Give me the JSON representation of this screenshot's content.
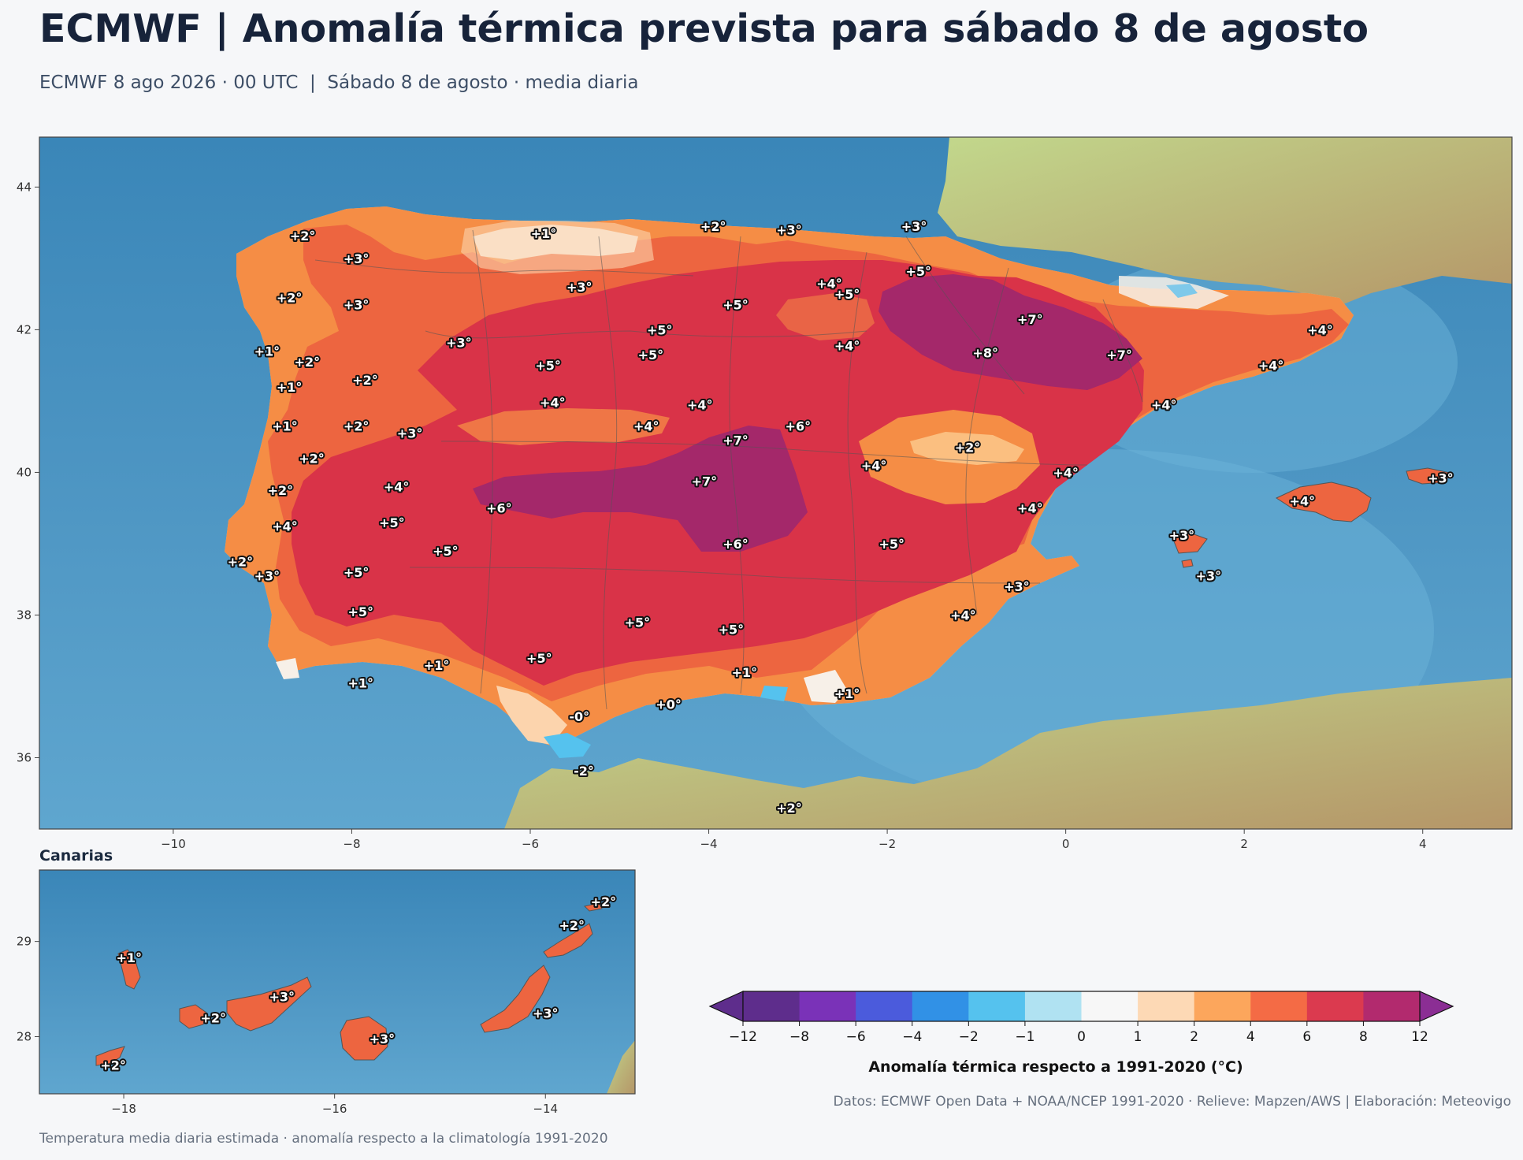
{
  "header": {
    "title": "ECMWF | Anomalía térmica prevista para sábado 8 de agosto",
    "subtitle": "ECMWF 8 ago 2026 · 00 UTC  |  Sábado 8 de agosto · media diaria"
  },
  "main_map": {
    "lon_ticks": [
      "−10",
      "−8",
      "−6",
      "−4",
      "−2",
      "0",
      "2",
      "4"
    ],
    "lat_ticks": [
      "44",
      "42",
      "40",
      "38",
      "36"
    ],
    "labels": [
      {
        "lon": -8.55,
        "lat": 43.32,
        "text": "+2°"
      },
      {
        "lon": -7.95,
        "lat": 43.0,
        "text": "+3°"
      },
      {
        "lon": -8.7,
        "lat": 42.45,
        "text": "+2°"
      },
      {
        "lon": -7.95,
        "lat": 42.35,
        "text": "+3°"
      },
      {
        "lon": -8.95,
        "lat": 41.7,
        "text": "+1°"
      },
      {
        "lon": -8.5,
        "lat": 41.55,
        "text": "+2°"
      },
      {
        "lon": -8.7,
        "lat": 41.2,
        "text": "+1°"
      },
      {
        "lon": -7.85,
        "lat": 41.3,
        "text": "+2°"
      },
      {
        "lon": -8.75,
        "lat": 40.65,
        "text": "+1°"
      },
      {
        "lon": -7.95,
        "lat": 40.65,
        "text": "+2°"
      },
      {
        "lon": -7.35,
        "lat": 40.55,
        "text": "+3°"
      },
      {
        "lon": -8.45,
        "lat": 40.2,
        "text": "+2°"
      },
      {
        "lon": -8.8,
        "lat": 39.75,
        "text": "+2°"
      },
      {
        "lon": -7.5,
        "lat": 39.8,
        "text": "+4°"
      },
      {
        "lon": -7.55,
        "lat": 39.3,
        "text": "+5°"
      },
      {
        "lon": -8.75,
        "lat": 39.25,
        "text": "+4°"
      },
      {
        "lon": -9.25,
        "lat": 38.75,
        "text": "+2°"
      },
      {
        "lon": -8.95,
        "lat": 38.55,
        "text": "+3°"
      },
      {
        "lon": -7.95,
        "lat": 38.6,
        "text": "+5°"
      },
      {
        "lon": -7.9,
        "lat": 38.05,
        "text": "+5°"
      },
      {
        "lon": -7.9,
        "lat": 37.05,
        "text": "+1°"
      },
      {
        "lon": -7.05,
        "lat": 37.3,
        "text": "+1°"
      },
      {
        "lon": -6.95,
        "lat": 38.9,
        "text": "+5°"
      },
      {
        "lon": -6.35,
        "lat": 39.5,
        "text": "+6°"
      },
      {
        "lon": -5.45,
        "lat": 36.58,
        "text": "-0°"
      },
      {
        "lon": -5.9,
        "lat": 37.4,
        "text": "+5°"
      },
      {
        "lon": -5.4,
        "lat": 35.82,
        "text": "-2°"
      },
      {
        "lon": -5.85,
        "lat": 43.35,
        "text": "+1°"
      },
      {
        "lon": -5.45,
        "lat": 42.6,
        "text": "+3°"
      },
      {
        "lon": -6.8,
        "lat": 41.82,
        "text": "+3°"
      },
      {
        "lon": -5.8,
        "lat": 41.5,
        "text": "+5°"
      },
      {
        "lon": -5.75,
        "lat": 40.98,
        "text": "+4°"
      },
      {
        "lon": -4.65,
        "lat": 41.65,
        "text": "+5°"
      },
      {
        "lon": -4.55,
        "lat": 42.0,
        "text": "+5°"
      },
      {
        "lon": -4.7,
        "lat": 40.65,
        "text": "+4°"
      },
      {
        "lon": -4.1,
        "lat": 40.95,
        "text": "+4°"
      },
      {
        "lon": -3.95,
        "lat": 43.45,
        "text": "+2°"
      },
      {
        "lon": -3.1,
        "lat": 43.4,
        "text": "+3°"
      },
      {
        "lon": -3.7,
        "lat": 42.35,
        "text": "+5°"
      },
      {
        "lon": -2.65,
        "lat": 42.65,
        "text": "+4°"
      },
      {
        "lon": -2.45,
        "lat": 42.5,
        "text": "+5°"
      },
      {
        "lon": -2.45,
        "lat": 41.78,
        "text": "+4°"
      },
      {
        "lon": -1.7,
        "lat": 43.45,
        "text": "+3°"
      },
      {
        "lon": -1.65,
        "lat": 42.82,
        "text": "+5°"
      },
      {
        "lon": -3.0,
        "lat": 40.65,
        "text": "+6°"
      },
      {
        "lon": -3.7,
        "lat": 40.45,
        "text": "+7°"
      },
      {
        "lon": -4.05,
        "lat": 39.88,
        "text": "+7°"
      },
      {
        "lon": -3.7,
        "lat": 39.0,
        "text": "+6°"
      },
      {
        "lon": -4.8,
        "lat": 37.9,
        "text": "+5°"
      },
      {
        "lon": -3.75,
        "lat": 37.8,
        "text": "+5°"
      },
      {
        "lon": -3.6,
        "lat": 37.2,
        "text": "+1°"
      },
      {
        "lon": -4.45,
        "lat": 36.75,
        "text": "+0°"
      },
      {
        "lon": -2.45,
        "lat": 36.9,
        "text": "+1°"
      },
      {
        "lon": -3.1,
        "lat": 35.3,
        "text": "+2°"
      },
      {
        "lon": -2.15,
        "lat": 40.1,
        "text": "+4°"
      },
      {
        "lon": -1.95,
        "lat": 39.0,
        "text": "+5°"
      },
      {
        "lon": -1.15,
        "lat": 38.0,
        "text": "+4°"
      },
      {
        "lon": -0.55,
        "lat": 38.4,
        "text": "+3°"
      },
      {
        "lon": -1.1,
        "lat": 40.35,
        "text": "+2°"
      },
      {
        "lon": -0.4,
        "lat": 39.5,
        "text": "+4°"
      },
      {
        "lon": 0.0,
        "lat": 40.0,
        "text": "+4°"
      },
      {
        "lon": -0.4,
        "lat": 42.15,
        "text": "+7°"
      },
      {
        "lon": -0.9,
        "lat": 41.68,
        "text": "+8°"
      },
      {
        "lon": 0.6,
        "lat": 41.65,
        "text": "+7°"
      },
      {
        "lon": 1.1,
        "lat": 40.95,
        "text": "+4°"
      },
      {
        "lon": 2.3,
        "lat": 41.5,
        "text": "+4°"
      },
      {
        "lon": 2.85,
        "lat": 42.0,
        "text": "+4°"
      },
      {
        "lon": 1.3,
        "lat": 39.12,
        "text": "+3°"
      },
      {
        "lon": 1.6,
        "lat": 38.55,
        "text": "+3°"
      },
      {
        "lon": 2.65,
        "lat": 39.6,
        "text": "+4°"
      },
      {
        "lon": 4.2,
        "lat": 39.92,
        "text": "+3°"
      }
    ]
  },
  "inset": {
    "title": "Canarias",
    "lon_ticks": [
      "−18",
      "−16",
      "−14"
    ],
    "lat_ticks": [
      "29",
      "28"
    ],
    "labels": [
      {
        "lon": -17.95,
        "lat": 28.83,
        "text": "+1°"
      },
      {
        "lon": -17.15,
        "lat": 28.2,
        "text": "+2°"
      },
      {
        "lon": -16.5,
        "lat": 28.42,
        "text": "+3°"
      },
      {
        "lon": -15.55,
        "lat": 27.98,
        "text": "+3°"
      },
      {
        "lon": -18.1,
        "lat": 27.7,
        "text": "+2°"
      },
      {
        "lon": -14.0,
        "lat": 28.25,
        "text": "+3°"
      },
      {
        "lon": -13.75,
        "lat": 29.17,
        "text": "+2°"
      },
      {
        "lon": -13.45,
        "lat": 29.42,
        "text": "+2°"
      }
    ]
  },
  "colorbar": {
    "title": "Anomalía térmica respecto a 1991-2020 (°C)",
    "ticks": [
      "−12",
      "−8",
      "−6",
      "−4",
      "−2",
      "−1",
      "0",
      "1",
      "2",
      "4",
      "6",
      "8",
      "12"
    ],
    "bins": [
      {
        "from": -12,
        "to": -8,
        "color": "#5e2d8c"
      },
      {
        "from": -8,
        "to": -6,
        "color": "#7a32b8"
      },
      {
        "from": -6,
        "to": -4,
        "color": "#4b5bdc"
      },
      {
        "from": -4,
        "to": -2,
        "color": "#3191e6"
      },
      {
        "from": -2,
        "to": -1,
        "color": "#55c2ee"
      },
      {
        "from": -1,
        "to": 0,
        "color": "#b0e2f2"
      },
      {
        "from": 0,
        "to": 1,
        "color": "#f7f7f7"
      },
      {
        "from": 1,
        "to": 2,
        "color": "#fdd9b5"
      },
      {
        "from": 2,
        "to": 4,
        "color": "#fca65c"
      },
      {
        "from": 4,
        "to": 6,
        "color": "#f46b45"
      },
      {
        "from": 6,
        "to": 8,
        "color": "#db3a4f"
      },
      {
        "from": 8,
        "to": 12,
        "color": "#b22a6e"
      }
    ],
    "under_color": "#5e2d8c",
    "over_color": "#8b2e94"
  },
  "credits": "Datos: ECMWF Open Data + NOAA/NCEP 1991-2020 · Relieve: Mapzen/AWS  |  Elaboración: Meteovigo",
  "footer": "Temperatura media diaria estimada · anomalía respecto a la climatología 1991-2020"
}
